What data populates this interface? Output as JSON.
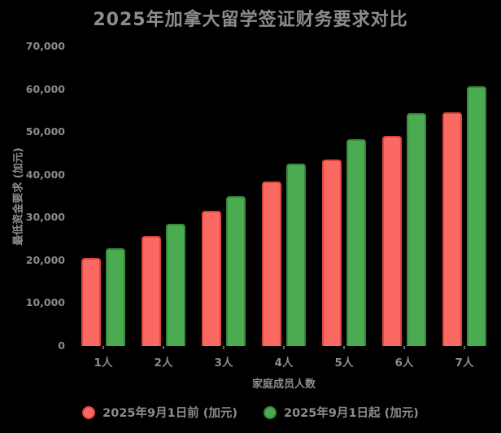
{
  "title": "2025年加拿大留学签证财务要求对比",
  "colors": {
    "background": "#000000",
    "text": "#8c8c8c",
    "red_fill": "#fa6a63",
    "red_edge": "#dc453e",
    "green_fill": "#4bab50",
    "green_edge": "#38873c",
    "tick_mark": "#666666"
  },
  "chart_data": {
    "type": "bar",
    "title": "2025年加拿大留学签证财务要求对比",
    "xlabel": "家庭成员人数",
    "ylabel": "最低资金要求 (加元)",
    "categories": [
      "1人",
      "2人",
      "3人",
      "4人",
      "5人",
      "6人",
      "7人"
    ],
    "series": [
      {
        "name": "2025年9月1日前 (加元)",
        "color": "#fa6a63",
        "edge_color": "#dc453e",
        "values": [
          20635,
          25690,
          31583,
          38346,
          43492,
          49051,
          54611
        ]
      },
      {
        "name": "2025年9月1日起 (加元)",
        "color": "#4bab50",
        "edge_color": "#38873c",
        "values": [
          22895,
          28502,
          35040,
          42543,
          48252,
          54420,
          60589
        ]
      }
    ],
    "ylim": [
      0,
      70000
    ],
    "yticks": [
      0,
      10000,
      20000,
      30000,
      40000,
      50000,
      60000,
      70000
    ],
    "ytick_labels": [
      "0",
      "10,000",
      "20,000",
      "30,000",
      "40,000",
      "50,000",
      "60,000",
      "70,000"
    ],
    "grid": false,
    "legend_position": "bottom"
  },
  "legend": {
    "items": [
      {
        "label": "2025年9月1日前 (加元)",
        "color": "#fa6a63",
        "edge_color": "#dc453e"
      },
      {
        "label": "2025年9月1日起 (加元)",
        "color": "#4bab50",
        "edge_color": "#38873c"
      }
    ]
  }
}
